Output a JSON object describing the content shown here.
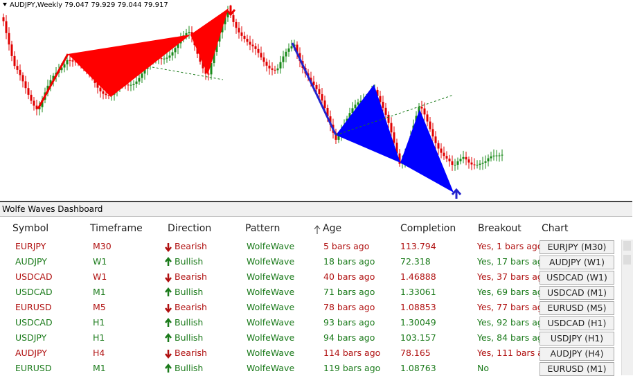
{
  "chart_header": "AUDJPY,Weekly  79.047 79.929 79.044 79.917",
  "dashboard": {
    "title": "Wolfe Waves Dashboard",
    "columns": [
      "Symbol",
      "Timeframe",
      "Direction",
      "Pattern",
      "Age",
      "Completion",
      "Breakout",
      "Chart"
    ],
    "rows": [
      {
        "symbol": "EURJPY",
        "timeframe": "M30",
        "direction": "Bearish",
        "pattern": "WolfeWave",
        "age": "5 bars ago",
        "completion": "113.794",
        "breakout": "Yes, 1 bars ago",
        "chart": "EURJPY (M30)",
        "color": "#b01010",
        "arrow": "down"
      },
      {
        "symbol": "AUDJPY",
        "timeframe": "W1",
        "direction": "Bullish",
        "pattern": "WolfeWave",
        "age": "18 bars ago",
        "completion": "72.318",
        "breakout": "Yes, 17 bars ag",
        "chart": "AUDJPY (W1)",
        "color": "#1a7a1a",
        "arrow": "up"
      },
      {
        "symbol": "USDCAD",
        "timeframe": "W1",
        "direction": "Bearish",
        "pattern": "WolfeWave",
        "age": "40 bars ago",
        "completion": "1.46888",
        "breakout": "Yes, 37 bars ag",
        "chart": "USDCAD (W1)",
        "color": "#b01010",
        "arrow": "down"
      },
      {
        "symbol": "USDCAD",
        "timeframe": "M1",
        "direction": "Bullish",
        "pattern": "WolfeWave",
        "age": "71 bars ago",
        "completion": "1.33061",
        "breakout": "Yes, 69 bars ag",
        "chart": "USDCAD (M1)",
        "color": "#1a7a1a",
        "arrow": "up"
      },
      {
        "symbol": "EURUSD",
        "timeframe": "M5",
        "direction": "Bearish",
        "pattern": "WolfeWave",
        "age": "78 bars ago",
        "completion": "1.08853",
        "breakout": "Yes, 77 bars ag",
        "chart": "EURUSD (M5)",
        "color": "#b01010",
        "arrow": "down"
      },
      {
        "symbol": "USDCAD",
        "timeframe": "H1",
        "direction": "Bullish",
        "pattern": "WolfeWave",
        "age": "93 bars ago",
        "completion": "1.30049",
        "breakout": "Yes, 92 bars ag",
        "chart": "USDCAD (H1)",
        "color": "#1a7a1a",
        "arrow": "up"
      },
      {
        "symbol": "USDJPY",
        "timeframe": "H1",
        "direction": "Bullish",
        "pattern": "WolfeWave",
        "age": "94 bars ago",
        "completion": "103.157",
        "breakout": "Yes, 84 bars ag",
        "chart": "USDJPY (H1)",
        "color": "#1a7a1a",
        "arrow": "up"
      },
      {
        "symbol": "AUDJPY",
        "timeframe": "H4",
        "direction": "Bearish",
        "pattern": "WolfeWave",
        "age": "114 bars ago",
        "completion": "78.165",
        "breakout": "Yes, 111 bars a",
        "chart": "AUDJPY (H4)",
        "color": "#b01010",
        "arrow": "down"
      },
      {
        "symbol": "EURUSD",
        "timeframe": "M1",
        "direction": "Bullish",
        "pattern": "WolfeWave",
        "age": "119 bars ago",
        "completion": "1.08763",
        "breakout": "No",
        "chart": "EURUSD (M1)",
        "color": "#1a7a1a",
        "arrow": "up"
      }
    ]
  }
}
